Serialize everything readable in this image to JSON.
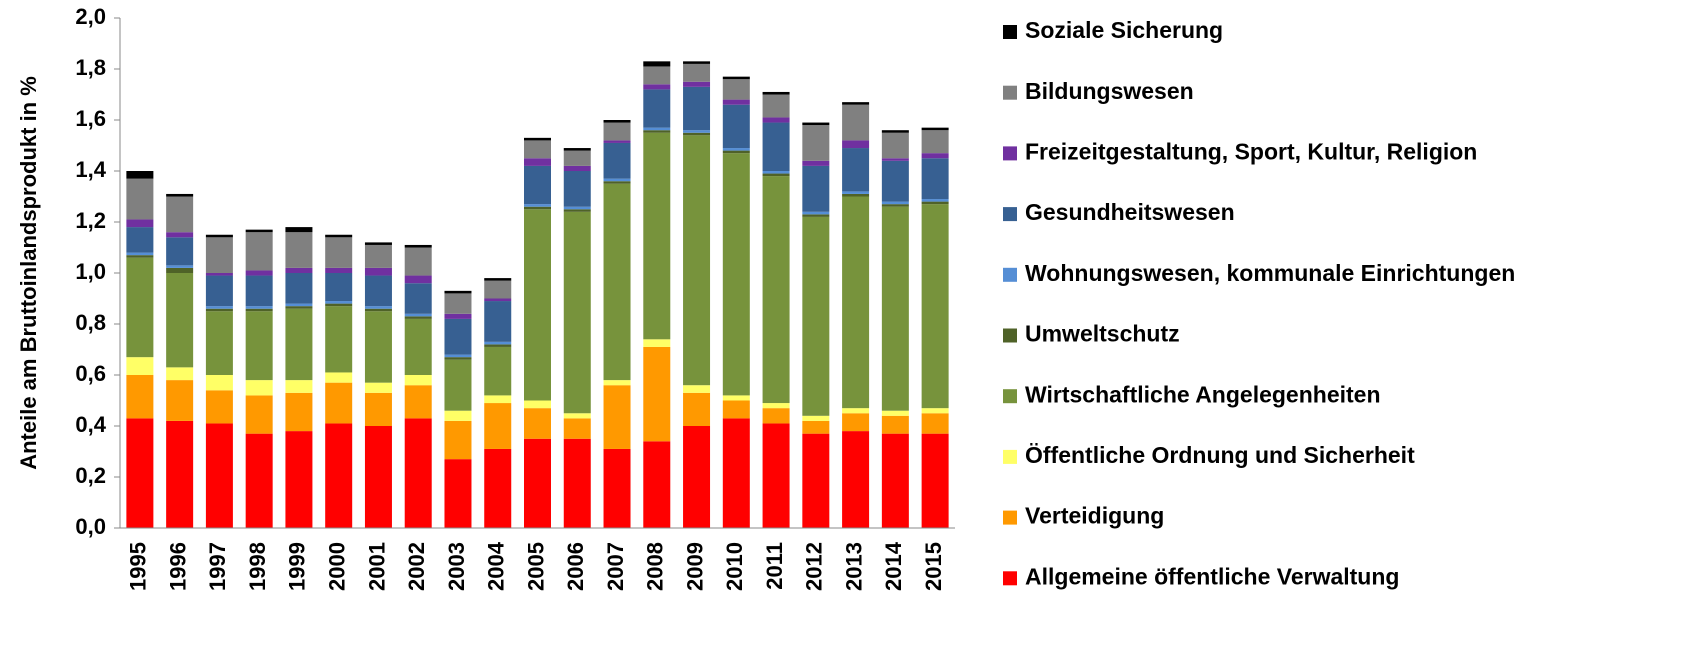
{
  "chart_data": {
    "type": "bar",
    "stacked": true,
    "y_label": "Anteile am Bruttoinlandsprodukt in %",
    "categories": [
      "1995",
      "1996",
      "1997",
      "1998",
      "1999",
      "2000",
      "2001",
      "2002",
      "2003",
      "2004",
      "2005",
      "2006",
      "2007",
      "2008",
      "2009",
      "2010",
      "2011",
      "2012",
      "2013",
      "2014",
      "2015"
    ],
    "ylim": [
      0,
      2
    ],
    "yticks": [
      {
        "value": 0,
        "label": "0,0"
      },
      {
        "value": 0.2,
        "label": "0,2"
      },
      {
        "value": 0.4,
        "label": "0,4"
      },
      {
        "value": 0.6,
        "label": "0,6"
      },
      {
        "value": 0.8,
        "label": "0,8"
      },
      {
        "value": 1,
        "label": "1,0"
      },
      {
        "value": 1.2,
        "label": "1,2"
      },
      {
        "value": 1.4,
        "label": "1,4"
      },
      {
        "value": 1.6,
        "label": "1,6"
      },
      {
        "value": 1.8,
        "label": "1,8"
      },
      {
        "value": 2,
        "label": "2,0"
      }
    ],
    "grid": false,
    "legend": "right",
    "series": [
      {
        "name": "Allgemeine öffentliche Verwaltung",
        "color": "#ff0000",
        "values": [
          0.43,
          0.42,
          0.41,
          0.37,
          0.38,
          0.41,
          0.4,
          0.43,
          0.27,
          0.31,
          0.35,
          0.35,
          0.31,
          0.34,
          0.4,
          0.43,
          0.41,
          0.37,
          0.38,
          0.37,
          0.37
        ]
      },
      {
        "name": "Verteidigung",
        "color": "#ff9900",
        "values": [
          0.17,
          0.16,
          0.13,
          0.15,
          0.15,
          0.16,
          0.13,
          0.13,
          0.15,
          0.18,
          0.12,
          0.08,
          0.25,
          0.37,
          0.13,
          0.07,
          0.06,
          0.05,
          0.07,
          0.07,
          0.08
        ]
      },
      {
        "name": "Öffentliche Ordnung und Sicherheit",
        "color": "#ffff66",
        "values": [
          0.07,
          0.05,
          0.06,
          0.06,
          0.05,
          0.04,
          0.04,
          0.04,
          0.04,
          0.03,
          0.03,
          0.02,
          0.02,
          0.03,
          0.03,
          0.02,
          0.02,
          0.02,
          0.02,
          0.02,
          0.02
        ]
      },
      {
        "name": "Wirtschaftliche Angelegenheiten",
        "color": "#77933c",
        "values": [
          0.39,
          0.37,
          0.25,
          0.27,
          0.28,
          0.26,
          0.28,
          0.22,
          0.2,
          0.19,
          0.75,
          0.79,
          0.77,
          0.81,
          0.98,
          0.95,
          0.89,
          0.78,
          0.83,
          0.8,
          0.8
        ]
      },
      {
        "name": "Umweltschutz",
        "color": "#4f6228",
        "values": [
          0.01,
          0.02,
          0.01,
          0.01,
          0.01,
          0.01,
          0.01,
          0.01,
          0.01,
          0.01,
          0.01,
          0.01,
          0.01,
          0.01,
          0.01,
          0.01,
          0.01,
          0.01,
          0.01,
          0.01,
          0.01
        ]
      },
      {
        "name": "Wohnungswesen, kommunale Einrichtungen",
        "color": "#558ed5",
        "values": [
          0.01,
          0.01,
          0.01,
          0.01,
          0.01,
          0.01,
          0.01,
          0.01,
          0.01,
          0.01,
          0.01,
          0.01,
          0.01,
          0.01,
          0.01,
          0.01,
          0.01,
          0.01,
          0.01,
          0.01,
          0.01
        ]
      },
      {
        "name": "Gesundheitswesen",
        "color": "#376092",
        "values": [
          0.1,
          0.11,
          0.12,
          0.12,
          0.12,
          0.11,
          0.12,
          0.12,
          0.14,
          0.16,
          0.15,
          0.14,
          0.14,
          0.15,
          0.17,
          0.17,
          0.19,
          0.18,
          0.17,
          0.16,
          0.16
        ]
      },
      {
        "name": "Freizeitgestaltung, Sport, Kultur, Religion",
        "color": "#7030a0",
        "values": [
          0.03,
          0.02,
          0.01,
          0.02,
          0.02,
          0.02,
          0.03,
          0.03,
          0.02,
          0.01,
          0.03,
          0.02,
          0.01,
          0.02,
          0.02,
          0.02,
          0.02,
          0.02,
          0.03,
          0.01,
          0.02
        ]
      },
      {
        "name": "Bildungswesen",
        "color": "#808080",
        "values": [
          0.16,
          0.14,
          0.14,
          0.15,
          0.14,
          0.12,
          0.09,
          0.11,
          0.08,
          0.07,
          0.07,
          0.06,
          0.07,
          0.07,
          0.07,
          0.08,
          0.09,
          0.14,
          0.14,
          0.1,
          0.09
        ]
      },
      {
        "name": "Soziale Sicherung",
        "color": "#000000",
        "values": [
          0.03,
          0.01,
          0.01,
          0.01,
          0.02,
          0.01,
          0.01,
          0.01,
          0.01,
          0.01,
          0.01,
          0.01,
          0.01,
          0.02,
          0.01,
          0.01,
          0.01,
          0.01,
          0.01,
          0.01,
          0.01
        ]
      }
    ]
  }
}
